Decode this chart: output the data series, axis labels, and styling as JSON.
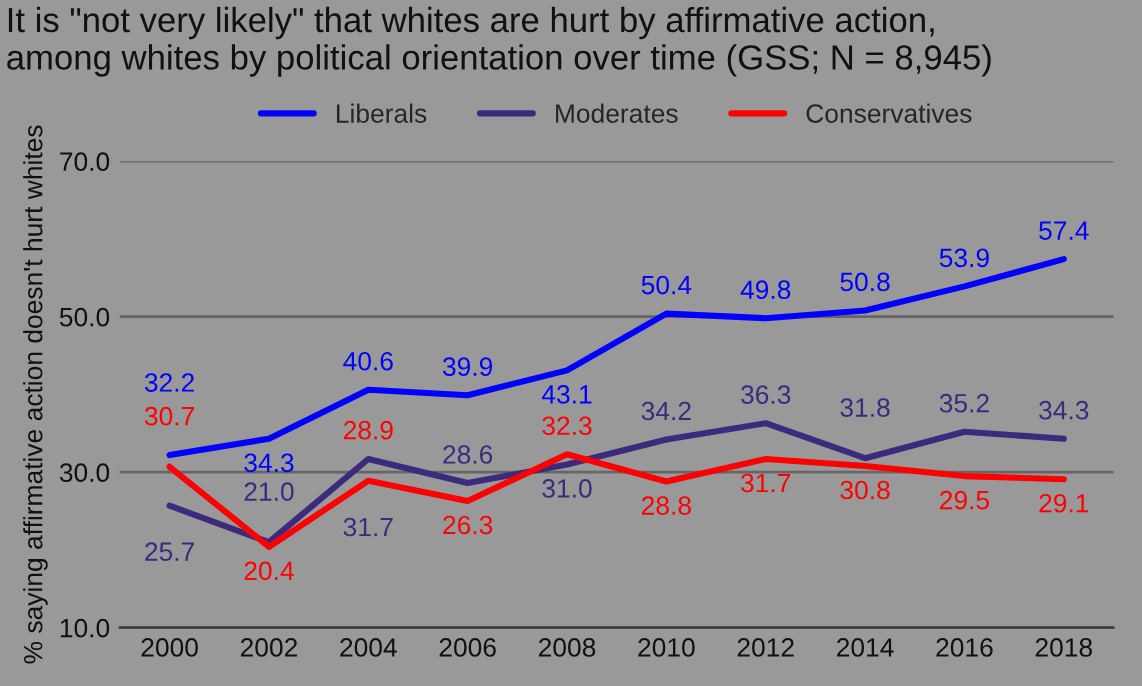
{
  "chart_data": {
    "type": "line",
    "title": "It is \"not very likely\" that whites are hurt by affirmative action,\namong whites by political orientation over time (GSS; N = 8,945)",
    "ylabel": "% saying affirmative action doesn't hurt whites",
    "categories": [
      "2000",
      "2002",
      "2004",
      "2006",
      "2008",
      "2010",
      "2012",
      "2014",
      "2016",
      "2018"
    ],
    "series": [
      {
        "name": "Liberals",
        "color": "#0000ff",
        "values": [
          32.2,
          34.3,
          40.6,
          39.9,
          43.1,
          50.4,
          49.8,
          50.8,
          53.9,
          57.4
        ],
        "value_labels": [
          "32.2",
          "34.3",
          "40.6",
          "39.9",
          "43.1",
          "50.4",
          "49.8",
          "50.8",
          "53.9",
          "57.4"
        ]
      },
      {
        "name": "Moderates",
        "color": "#3c2a7c",
        "values": [
          25.7,
          21.0,
          31.7,
          28.6,
          31.0,
          34.2,
          36.3,
          31.8,
          35.2,
          34.3
        ],
        "value_labels": [
          "25.7",
          "21.0",
          "31.7",
          "28.6",
          "31.0",
          "34.2",
          "36.3",
          "31.8",
          "35.2",
          "34.3"
        ]
      },
      {
        "name": "Conservatives",
        "color": "#ff0000",
        "values": [
          30.7,
          20.4,
          28.9,
          26.3,
          32.3,
          28.8,
          31.7,
          30.8,
          29.5,
          29.1
        ],
        "value_labels": [
          "30.7",
          "20.4",
          "28.9",
          "26.3",
          "32.3",
          "28.8",
          "31.7",
          "30.8",
          "29.5",
          "29.1"
        ]
      }
    ],
    "ylim": [
      10.0,
      70.0
    ],
    "yticks": [
      {
        "value": 10,
        "label": "10.0"
      },
      {
        "value": 30,
        "label": "30.0"
      },
      {
        "value": 50,
        "label": "50.0"
      },
      {
        "value": 70,
        "label": "70.0"
      }
    ],
    "grid": "y",
    "legend": "top",
    "marker": "none",
    "line_style": "solid"
  }
}
